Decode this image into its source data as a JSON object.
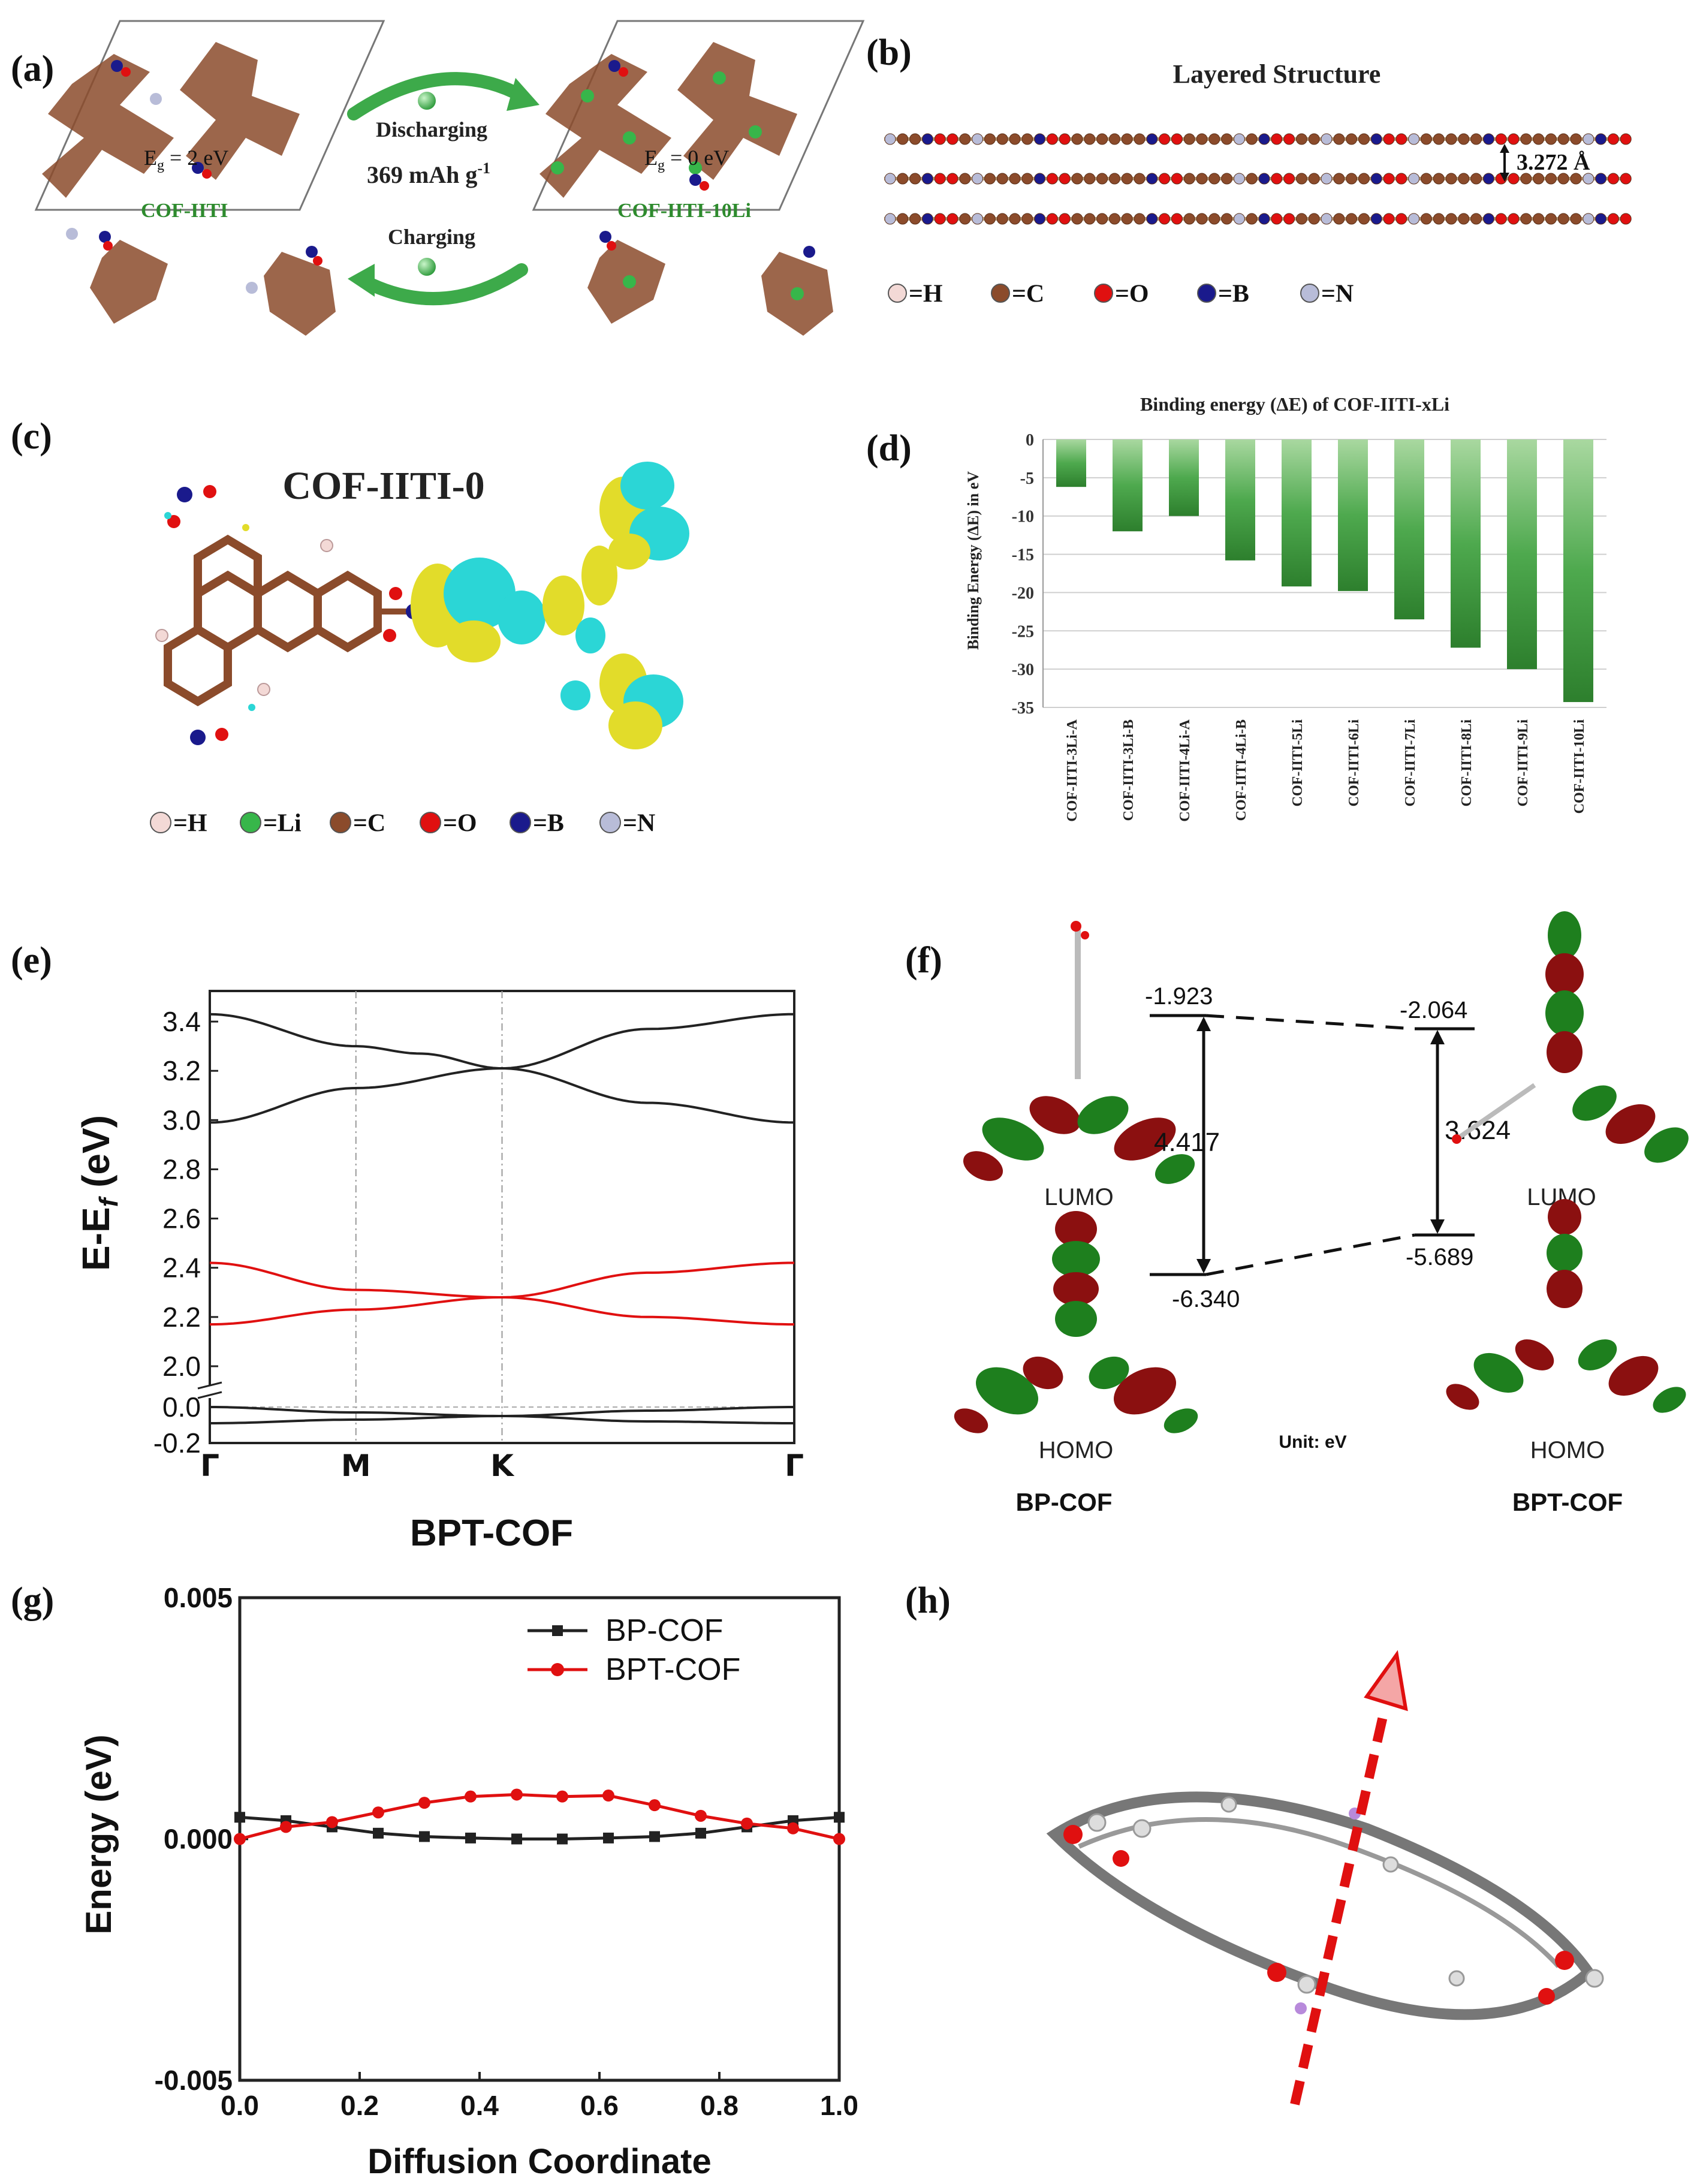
{
  "panel_labels": {
    "a": "(a)",
    "b": "(b)",
    "c": "(c)",
    "d": "(d)",
    "e": "(e)",
    "f": "(f)",
    "g": "(g)",
    "h": "(h)"
  },
  "colors": {
    "carbon": "#8B4B2B",
    "hydrogen": "#F3D9D6",
    "oxygen": "#E01010",
    "boron": "#1A1A8C",
    "nitrogen": "#B8BCD8",
    "lithium": "#37B64A",
    "green_bar": "#4EA94E",
    "red_band": "#E01010",
    "dark": "#222222",
    "cyan": "#2BD6D6",
    "yellow": "#E2DC2A"
  },
  "panel_a": {
    "left_gap": "E",
    "left_gap_sub": "g",
    "left_gap_val": " = 2 eV",
    "left_name": "COF-IITI",
    "right_gap": "E",
    "right_gap_sub": "g",
    "right_gap_val": " = 0 eV",
    "right_name": "COF-IITI-10Li",
    "discharging": "Discharging",
    "capacity": "369 mAh g",
    "capacity_sup": "-1",
    "charging": "Charging"
  },
  "panel_b": {
    "title": "Layered Structure",
    "spacing": "3.272 Å"
  },
  "legend_b": [
    {
      "sym": "=H",
      "key": "hydrogen"
    },
    {
      "sym": "=C",
      "key": "carbon"
    },
    {
      "sym": "=O",
      "key": "oxygen"
    },
    {
      "sym": "=B",
      "key": "boron"
    },
    {
      "sym": "=N",
      "key": "nitrogen"
    }
  ],
  "panel_c": {
    "title": "COF-IITI-0"
  },
  "legend_c": [
    {
      "sym": "=H",
      "key": "hydrogen"
    },
    {
      "sym": "=Li",
      "key": "lithium"
    },
    {
      "sym": "=C",
      "key": "carbon"
    },
    {
      "sym": "=O",
      "key": "oxygen"
    },
    {
      "sym": "=B",
      "key": "boron"
    },
    {
      "sym": "=N",
      "key": "nitrogen"
    }
  ],
  "chart_data": [
    {
      "id": "d",
      "type": "bar",
      "title": "Binding energy (ΔE) of COF-IITI-xLi",
      "ylabel": "Binding Energy (ΔE) in eV",
      "ylim": [
        -35,
        0
      ],
      "yticks": [
        0,
        -5,
        -10,
        -15,
        -20,
        -25,
        -30,
        -35
      ],
      "categories": [
        "COF-IITI-3Li-A",
        "COF-IITI-3Li-B",
        "COF-IITI-4Li-A",
        "COF-IITI-4Li-B",
        "COF-IITI-5Li",
        "COF-IITI-6Li",
        "COF-IITI-7Li",
        "COF-IITI-8Li",
        "COF-IITI-9Li",
        "COF-IITI-10Li"
      ],
      "values": [
        -6.2,
        -12.0,
        -10.0,
        -15.8,
        -19.2,
        -19.8,
        -23.5,
        -27.2,
        -30.0,
        -34.3
      ]
    },
    {
      "id": "e",
      "type": "line",
      "title": "BPT-COF",
      "ylabel": "E-E",
      "ylabel_sub": "f",
      "ylabel_unit": " (eV)",
      "xticks": [
        "Γ",
        "M",
        "K",
        "Γ"
      ],
      "upper_ylim": [
        1.9,
        3.5
      ],
      "upper_yticks": [
        "3.4",
        "3.2",
        "3.0",
        "2.8",
        "2.6",
        "2.4",
        "2.2",
        "2.0"
      ],
      "lower_ylim": [
        -0.2,
        0.1
      ],
      "lower_yticks": [
        "0.0",
        "-0.2"
      ],
      "series": [
        {
          "name": "upper-1",
          "color": "#222222",
          "x": [
            0,
            0.5,
            0.72,
            1.0,
            1.5,
            2.0
          ],
          "y": [
            3.43,
            3.3,
            3.27,
            3.21,
            3.37,
            3.43
          ]
        },
        {
          "name": "upper-2",
          "color": "#222222",
          "x": [
            0,
            0.5,
            1.0,
            1.5,
            2.0
          ],
          "y": [
            2.99,
            3.13,
            3.21,
            3.07,
            2.99
          ]
        },
        {
          "name": "red-1",
          "color": "#E01010",
          "x": [
            0,
            0.5,
            1.0,
            1.5,
            2.0
          ],
          "y": [
            2.42,
            2.31,
            2.28,
            2.38,
            2.42
          ]
        },
        {
          "name": "red-2",
          "color": "#E01010",
          "x": [
            0,
            0.5,
            1.0,
            1.5,
            2.0
          ],
          "y": [
            2.17,
            2.23,
            2.28,
            2.2,
            2.17
          ]
        },
        {
          "name": "low-1",
          "color": "#222222",
          "x": [
            0,
            0.5,
            1.0,
            1.5,
            2.0
          ],
          "y": [
            0.0,
            -0.03,
            -0.05,
            -0.02,
            0.0
          ]
        },
        {
          "name": "low-2",
          "color": "#222222",
          "x": [
            0,
            0.5,
            1.0,
            1.5,
            2.0
          ],
          "y": [
            -0.09,
            -0.07,
            -0.05,
            -0.08,
            -0.09
          ]
        }
      ]
    },
    {
      "id": "g",
      "type": "line",
      "xlabel": "Diffusion Coordinate",
      "ylabel": "Energy (eV)",
      "xlim": [
        0,
        1
      ],
      "ylim": [
        -0.005,
        0.005
      ],
      "xticks": [
        "0.0",
        "0.2",
        "0.4",
        "0.6",
        "0.8",
        "1.0"
      ],
      "yticks": [
        "0.005",
        "0.000",
        "-0.005"
      ],
      "series": [
        {
          "name": "BP-COF",
          "color": "#222222",
          "marker": "square",
          "x": [
            0.0,
            0.077,
            0.154,
            0.231,
            0.308,
            0.385,
            0.462,
            0.538,
            0.615,
            0.692,
            0.769,
            0.846,
            0.923,
            1.0
          ],
          "y": [
            0.00045,
            0.00038,
            0.00025,
            0.00012,
            5e-05,
            2e-05,
            0.0,
            0.0,
            2e-05,
            5e-05,
            0.00012,
            0.00025,
            0.00038,
            0.00045
          ]
        },
        {
          "name": "BPT-COF",
          "color": "#E01010",
          "marker": "circle",
          "x": [
            0.0,
            0.077,
            0.154,
            0.231,
            0.308,
            0.385,
            0.462,
            0.538,
            0.615,
            0.692,
            0.769,
            0.846,
            0.923,
            1.0
          ],
          "y": [
            0.0,
            0.00025,
            0.00035,
            0.00055,
            0.00075,
            0.00088,
            0.00092,
            0.00088,
            0.0009,
            0.0007,
            0.00048,
            0.00032,
            0.00022,
            0.0
          ]
        }
      ]
    }
  ],
  "panel_f": {
    "left_lumo": "-1.923",
    "right_lumo": "-2.064",
    "left_gap": "4.417",
    "right_gap": "3.624",
    "right_homo": "-5.689",
    "left_homo": "-6.340",
    "lumo": "LUMO",
    "homo": "HOMO",
    "unit": "Unit: eV",
    "left_name": "BP-COF",
    "right_name": "BPT-COF"
  }
}
